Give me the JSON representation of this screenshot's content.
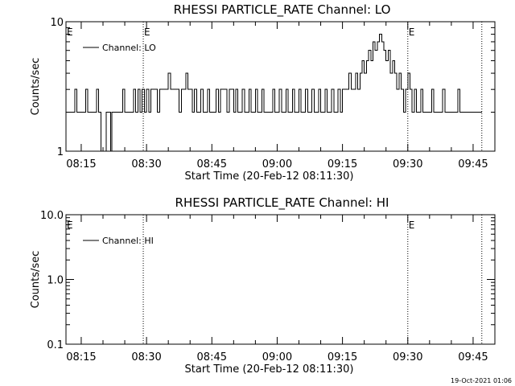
{
  "footer": {
    "timestamp": "19-Oct-2021 01:06"
  },
  "chart_data": [
    {
      "type": "line",
      "title": "RHESSI PARTICLE_RATE Channel: LO",
      "xlabel": "Start Time (20-Feb-12 08:11:30)",
      "ylabel": "Counts/sec",
      "yscale": "log",
      "xlim": [
        "08:11:30",
        "09:50:00"
      ],
      "ylim": [
        1,
        10
      ],
      "x_ticks": [
        "08:15",
        "08:30",
        "08:45",
        "09:00",
        "09:15",
        "09:30",
        "09:45"
      ],
      "y_ticks": [
        "1",
        "10"
      ],
      "legend": {
        "placement": "top-left",
        "entry": "Channel: LO"
      },
      "grid": false,
      "vlines": [
        {
          "time": "08:29:15",
          "marker": "E"
        },
        {
          "time": "09:30:00",
          "marker": "E"
        },
        {
          "time": "09:47:00",
          "marker": ""
        }
      ],
      "axis_markers": [
        {
          "time": "08:11:30",
          "marker": "E"
        }
      ],
      "series": [
        {
          "values": [
            [
              "08:11:30",
              2
            ],
            [
              "08:13:00",
              2
            ],
            [
              "08:13:30",
              3
            ],
            [
              "08:14:00",
              2
            ],
            [
              "08:15:30",
              2
            ],
            [
              "08:16:00",
              3
            ],
            [
              "08:16:30",
              2
            ],
            [
              "08:18:00",
              2
            ],
            [
              "08:18:30",
              3
            ],
            [
              "08:19:00",
              2
            ],
            [
              "08:19:30",
              1
            ],
            [
              "08:20:30",
              1
            ],
            [
              "08:20:45",
              2
            ],
            [
              "08:21:30",
              2
            ],
            [
              "08:21:45",
              1
            ],
            [
              "08:22:00",
              2
            ],
            [
              "08:24:00",
              2
            ],
            [
              "08:24:30",
              3
            ],
            [
              "08:25:00",
              2
            ],
            [
              "08:26:30",
              2
            ],
            [
              "08:27:00",
              3
            ],
            [
              "08:27:30",
              2
            ],
            [
              "08:28:00",
              3
            ],
            [
              "08:28:30",
              2
            ],
            [
              "08:29:00",
              3
            ],
            [
              "08:29:30",
              2
            ],
            [
              "08:30:00",
              3
            ],
            [
              "08:30:30",
              2
            ],
            [
              "08:31:00",
              3
            ],
            [
              "08:32:00",
              3
            ],
            [
              "08:32:30",
              2
            ],
            [
              "08:33:00",
              3
            ],
            [
              "08:34:30",
              3
            ],
            [
              "08:35:00",
              4
            ],
            [
              "08:35:30",
              3
            ],
            [
              "08:37:00",
              3
            ],
            [
              "08:37:30",
              2
            ],
            [
              "08:38:00",
              3
            ],
            [
              "08:39:00",
              4
            ],
            [
              "08:39:30",
              3
            ],
            [
              "08:40:30",
              2
            ],
            [
              "08:41:00",
              3
            ],
            [
              "08:41:30",
              2
            ],
            [
              "08:42:30",
              3
            ],
            [
              "08:43:00",
              2
            ],
            [
              "08:44:00",
              3
            ],
            [
              "08:44:30",
              2
            ],
            [
              "08:45:30",
              2
            ],
            [
              "08:46:00",
              3
            ],
            [
              "08:46:30",
              2
            ],
            [
              "08:47:00",
              3
            ],
            [
              "08:48:00",
              3
            ],
            [
              "08:48:30",
              2
            ],
            [
              "08:49:00",
              3
            ],
            [
              "08:50:00",
              2
            ],
            [
              "08:50:30",
              3
            ],
            [
              "08:51:00",
              2
            ],
            [
              "08:52:00",
              3
            ],
            [
              "08:52:30",
              2
            ],
            [
              "08:53:30",
              3
            ],
            [
              "08:54:00",
              2
            ],
            [
              "08:55:00",
              3
            ],
            [
              "08:55:30",
              2
            ],
            [
              "08:56:30",
              3
            ],
            [
              "08:57:00",
              2
            ],
            [
              "08:58:30",
              2
            ],
            [
              "08:59:00",
              3
            ],
            [
              "08:59:30",
              2
            ],
            [
              "09:00:30",
              3
            ],
            [
              "09:01:00",
              2
            ],
            [
              "09:02:00",
              3
            ],
            [
              "09:02:30",
              2
            ],
            [
              "09:03:30",
              3
            ],
            [
              "09:04:00",
              2
            ],
            [
              "09:05:00",
              3
            ],
            [
              "09:05:30",
              2
            ],
            [
              "09:06:30",
              3
            ],
            [
              "09:07:00",
              2
            ],
            [
              "09:08:00",
              3
            ],
            [
              "09:08:30",
              2
            ],
            [
              "09:09:30",
              3
            ],
            [
              "09:10:00",
              2
            ],
            [
              "09:11:00",
              3
            ],
            [
              "09:11:30",
              2
            ],
            [
              "09:12:30",
              3
            ],
            [
              "09:13:00",
              2
            ],
            [
              "09:14:00",
              3
            ],
            [
              "09:14:30",
              2
            ],
            [
              "09:15:00",
              3
            ],
            [
              "09:16:00",
              3
            ],
            [
              "09:16:30",
              4
            ],
            [
              "09:17:00",
              3
            ],
            [
              "09:18:00",
              4
            ],
            [
              "09:18:30",
              3
            ],
            [
              "09:19:00",
              4
            ],
            [
              "09:19:30",
              5
            ],
            [
              "09:20:00",
              4
            ],
            [
              "09:20:30",
              5
            ],
            [
              "09:21:00",
              6
            ],
            [
              "09:21:30",
              5
            ],
            [
              "09:22:00",
              7
            ],
            [
              "09:22:30",
              6
            ],
            [
              "09:23:00",
              7
            ],
            [
              "09:23:30",
              8
            ],
            [
              "09:24:00",
              7
            ],
            [
              "09:24:30",
              6
            ],
            [
              "09:25:00",
              5
            ],
            [
              "09:25:30",
              6
            ],
            [
              "09:26:00",
              4
            ],
            [
              "09:26:30",
              5
            ],
            [
              "09:27:00",
              4
            ],
            [
              "09:27:30",
              3
            ],
            [
              "09:28:00",
              4
            ],
            [
              "09:28:30",
              3
            ],
            [
              "09:29:00",
              2
            ],
            [
              "09:29:30",
              3
            ],
            [
              "09:30:00",
              4
            ],
            [
              "09:30:30",
              3
            ],
            [
              "09:31:00",
              2
            ],
            [
              "09:31:30",
              3
            ],
            [
              "09:32:00",
              2
            ],
            [
              "09:33:00",
              3
            ],
            [
              "09:33:30",
              2
            ],
            [
              "09:35:00",
              2
            ],
            [
              "09:35:30",
              3
            ],
            [
              "09:36:00",
              2
            ],
            [
              "09:37:30",
              2
            ],
            [
              "09:38:00",
              3
            ],
            [
              "09:38:30",
              2
            ],
            [
              "09:41:00",
              2
            ],
            [
              "09:41:30",
              3
            ],
            [
              "09:42:00",
              2
            ],
            [
              "09:47:00",
              2
            ]
          ]
        }
      ]
    },
    {
      "type": "line",
      "title": "RHESSI PARTICLE_RATE Channel: HI",
      "xlabel": "Start Time (20-Feb-12 08:11:30)",
      "ylabel": "Counts/sec",
      "yscale": "log",
      "xlim": [
        "08:11:30",
        "09:50:00"
      ],
      "ylim": [
        0.1,
        10
      ],
      "x_ticks": [
        "08:15",
        "08:30",
        "08:45",
        "09:00",
        "09:15",
        "09:30",
        "09:45"
      ],
      "y_ticks": [
        "0.1",
        "1.0",
        "10.0"
      ],
      "legend": {
        "placement": "top-left",
        "entry": "Channel: HI"
      },
      "grid": false,
      "vlines": [
        {
          "time": "08:29:15",
          "marker": ""
        },
        {
          "time": "09:30:00",
          "marker": "E"
        },
        {
          "time": "09:47:00",
          "marker": ""
        }
      ],
      "axis_markers": [
        {
          "time": "08:11:30",
          "marker": "E"
        }
      ],
      "series": [
        {
          "values": []
        }
      ]
    }
  ]
}
